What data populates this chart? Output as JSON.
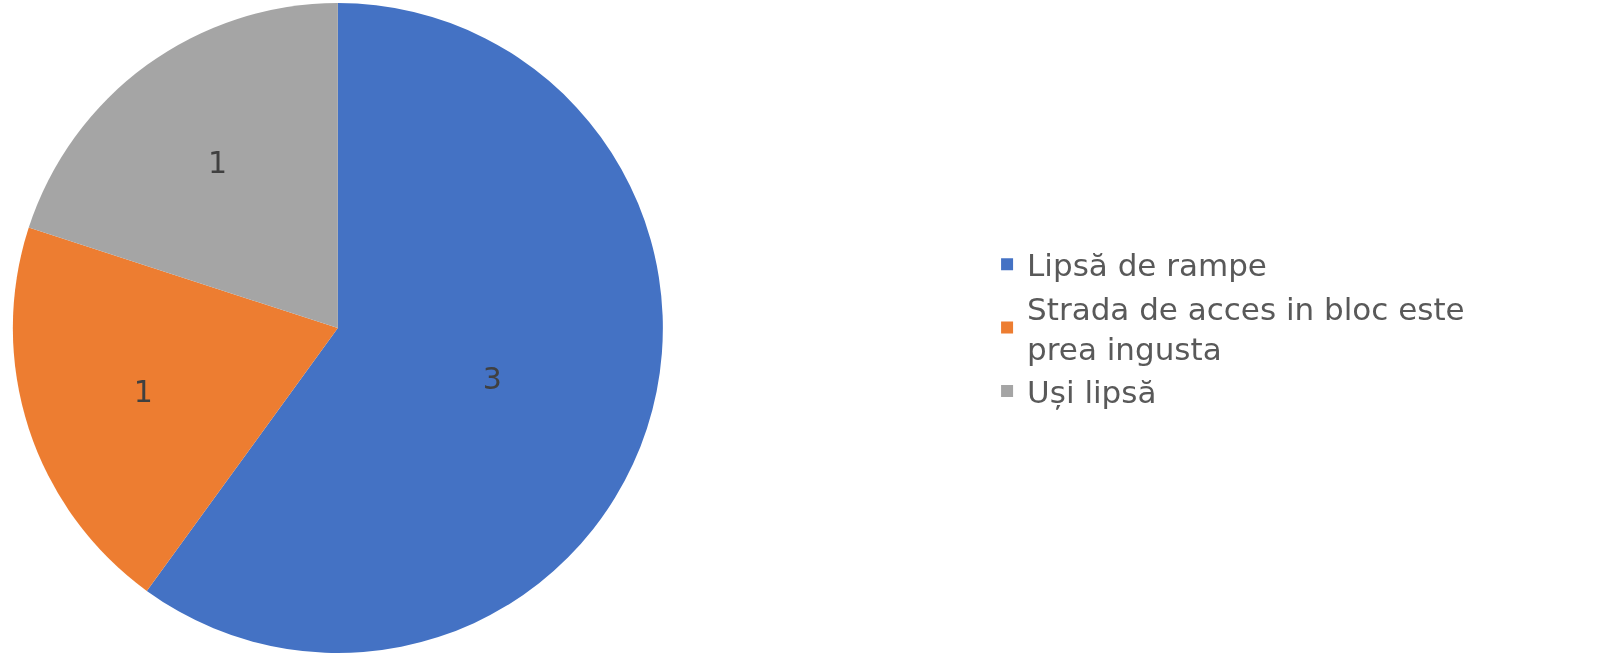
{
  "chart_data": {
    "type": "pie",
    "categories": [
      "Lipsă de rampe",
      "Strada de acces in bloc este prea ingusta",
      "Uși lipsă"
    ],
    "values": [
      3,
      1,
      1
    ],
    "colors": [
      "#4472c4",
      "#ed7d31",
      "#a5a5a5"
    ],
    "data_labels": true,
    "legend": "right"
  }
}
